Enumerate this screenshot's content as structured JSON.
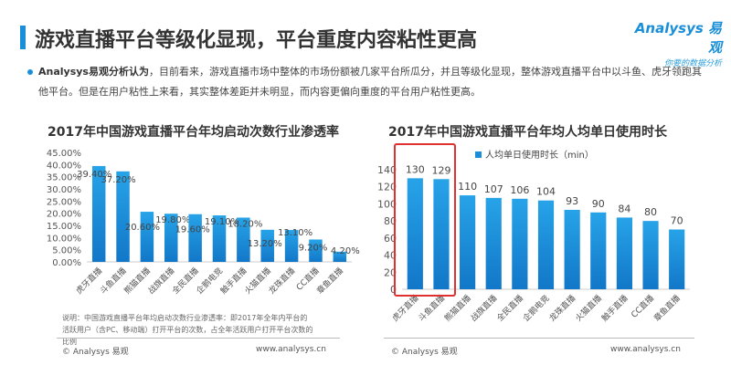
{
  "header": {
    "title": "游戏直播平台等级化显现，平台重度内容粘性更高",
    "logo_text": "Analysys 易观",
    "logo_slogan": "你要的数据分析"
  },
  "intro": {
    "lead": "Analysys易观分析认为",
    "text": "，目前看来，游戏直播市场中整体的市场份额被几家平台所瓜分，并且等级化显现，整体游戏直播平台中以斗鱼、虎牙领跑其他平台。但是在用户粘性上来看，其实整体差距并未明显，而内容更偏向重度的平台用户粘性更高。"
  },
  "left_footer": {
    "note": "说明：中国游戏直播平台年均启动次数行业渗透率：即2017年全年内平台的活跃用户（含PC、移动端）打开平台的次数，占全年活跃用户打开平台次数的比例",
    "copyright": "© Analysys 易观",
    "url": "www.analysys.cn"
  },
  "right_footer": {
    "copyright": "© Analysys 易观",
    "url": "www.analysys.cn"
  },
  "colors": {
    "bar": "#1a8fd8",
    "accent": "#1a8fd8",
    "highlight_box": "#e03030"
  },
  "chart_data": [
    {
      "type": "bar",
      "title": "2017年中国游戏直播平台年均启动次数行业渗透率",
      "categories": [
        "虎牙直播",
        "斗鱼直播",
        "熊猫直播",
        "战旗直播",
        "全民直播",
        "企鹅电竞",
        "触手直播",
        "火猫直播",
        "龙珠直播",
        "CC直播",
        "章鱼直播"
      ],
      "values": [
        39.4,
        37.2,
        20.6,
        19.8,
        19.6,
        19.1,
        18.2,
        13.2,
        13.1,
        9.2,
        4.2
      ],
      "data_labels": [
        "39.40%",
        "37.20%",
        "20.60%",
        "19.80%",
        "19.60%",
        "19.10%",
        "18.20%",
        "13.20%",
        "13.10%",
        "9.20%",
        "4.20%"
      ],
      "yticks": [
        "0.00%",
        "5.00%",
        "10.00%",
        "15.00%",
        "20.00%",
        "25.00%",
        "30.00%",
        "35.00%",
        "40.00%",
        "45.00%"
      ],
      "ylim": [
        0,
        45
      ],
      "grid": false
    },
    {
      "type": "bar",
      "title": "2017年中国游戏直播平台年均人均单日使用时长",
      "legend": "人均单日使用时长（min）",
      "legend_position": "top",
      "categories": [
        "虎牙直播",
        "斗鱼直播",
        "熊猫直播",
        "战旗直播",
        "全民直播",
        "企鹅电竞",
        "龙珠直播",
        "火猫直播",
        "触手直播",
        "CC直播",
        "章鱼直播"
      ],
      "values": [
        130,
        129,
        110,
        107,
        106,
        104,
        93,
        90,
        84,
        80,
        70
      ],
      "yticks": [
        "0",
        "20",
        "40",
        "60",
        "80",
        "100",
        "120",
        "140"
      ],
      "ylim": [
        0,
        140
      ],
      "grid": false,
      "highlighted": [
        "虎牙直播",
        "斗鱼直播"
      ]
    }
  ]
}
